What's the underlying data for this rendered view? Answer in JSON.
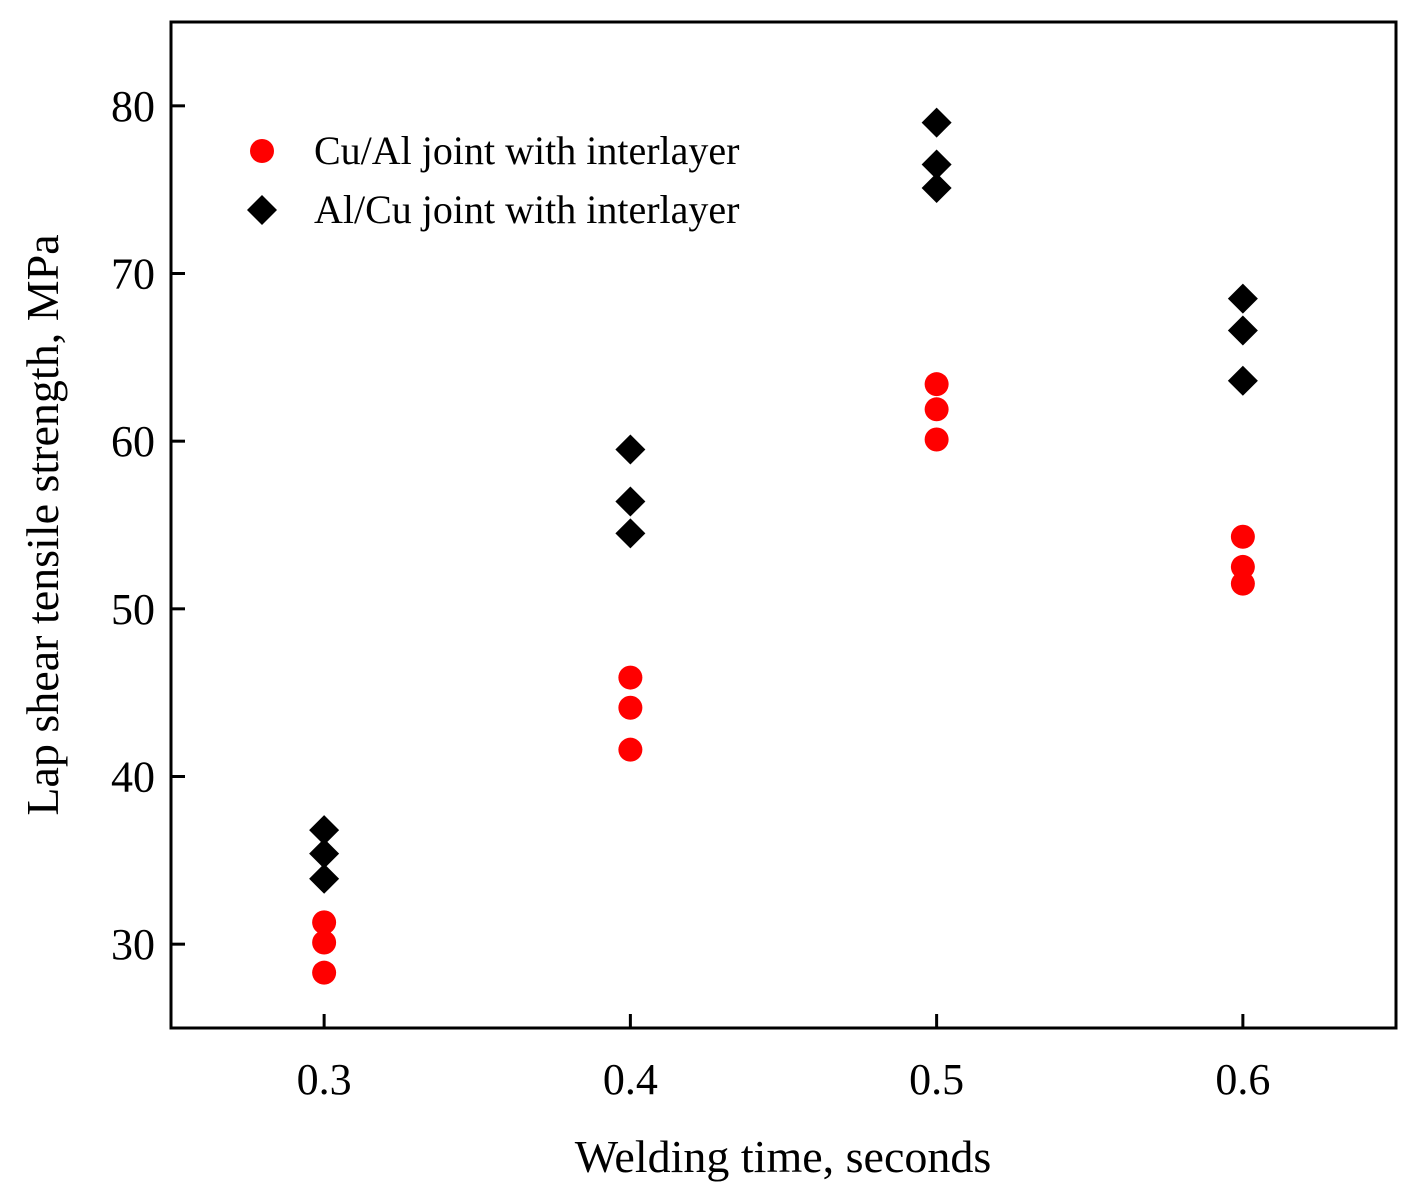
{
  "chart_data": {
    "type": "scatter",
    "title": "",
    "xlabel": "Welding time, seconds",
    "ylabel": "Lap shear tensile strength, MPa",
    "xlim": [
      0.25,
      0.65
    ],
    "ylim": [
      25,
      85
    ],
    "xticks": [
      0.3,
      0.4,
      0.5,
      0.6
    ],
    "xtick_labels": [
      "0.3",
      "0.4",
      "0.5",
      "0.6"
    ],
    "yticks": [
      30,
      40,
      50,
      60,
      70,
      80
    ],
    "ytick_labels": [
      "30",
      "40",
      "50",
      "60",
      "70",
      "80"
    ],
    "grid": false,
    "legend_position": "top-left",
    "series": [
      {
        "name": "Cu/Al joint with interlayer",
        "marker": "circle",
        "color": "#ff0000",
        "points": [
          {
            "x": 0.3,
            "y": 28.3
          },
          {
            "x": 0.3,
            "y": 30.1
          },
          {
            "x": 0.3,
            "y": 31.3
          },
          {
            "x": 0.4,
            "y": 41.6
          },
          {
            "x": 0.4,
            "y": 44.1
          },
          {
            "x": 0.4,
            "y": 45.9
          },
          {
            "x": 0.5,
            "y": 60.1
          },
          {
            "x": 0.5,
            "y": 61.9
          },
          {
            "x": 0.5,
            "y": 63.4
          },
          {
            "x": 0.6,
            "y": 51.5
          },
          {
            "x": 0.6,
            "y": 52.5
          },
          {
            "x": 0.6,
            "y": 54.3
          }
        ]
      },
      {
        "name": "Al/Cu joint with interlayer",
        "marker": "diamond",
        "color": "#000000",
        "points": [
          {
            "x": 0.3,
            "y": 33.9
          },
          {
            "x": 0.3,
            "y": 35.4
          },
          {
            "x": 0.3,
            "y": 36.8
          },
          {
            "x": 0.4,
            "y": 54.5
          },
          {
            "x": 0.4,
            "y": 56.4
          },
          {
            "x": 0.4,
            "y": 59.5
          },
          {
            "x": 0.5,
            "y": 75.1
          },
          {
            "x": 0.5,
            "y": 76.5
          },
          {
            "x": 0.5,
            "y": 79.0
          },
          {
            "x": 0.6,
            "y": 63.6
          },
          {
            "x": 0.6,
            "y": 66.6
          },
          {
            "x": 0.6,
            "y": 68.5
          }
        ]
      }
    ]
  }
}
